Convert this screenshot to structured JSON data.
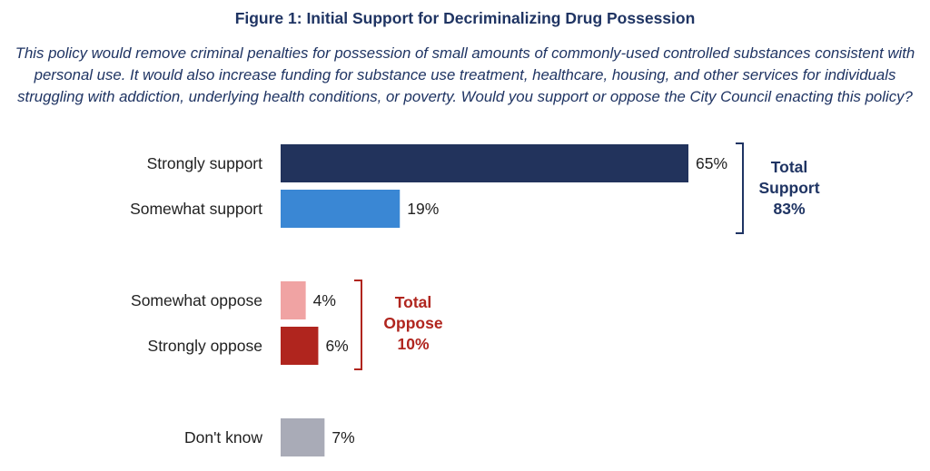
{
  "figure": {
    "title": "Figure 1: Initial Support for Decriminalizing Drug Possession",
    "question": "This policy would remove criminal penalties for possession of small amounts of commonly-used controlled substances consistent with personal use.  It would also increase funding for substance use treatment, healthcare, housing, and other services for individuals struggling with addiction, underlying health conditions, or poverty. Would you support or oppose the City Council enacting this policy?"
  },
  "groups": {
    "support": {
      "lines": [
        "Total",
        "Support",
        "83%"
      ],
      "color": "#1f3463"
    },
    "oppose": {
      "lines": [
        "Total",
        "Oppose",
        "10%"
      ],
      "color": "#b0251e"
    }
  },
  "chart_data": {
    "type": "bar",
    "orientation": "horizontal",
    "categories": [
      "Strongly support",
      "Somewhat support",
      "Somewhat oppose",
      "Strongly oppose",
      "Don't know"
    ],
    "values": [
      65,
      19,
      4,
      6,
      7
    ],
    "value_labels": [
      "65%",
      "19%",
      "4%",
      "6%",
      "7%"
    ],
    "colors": [
      "#22335c",
      "#3a87d4",
      "#f0a3a3",
      "#b0251e",
      "#a9abb7"
    ],
    "unit": "%",
    "xlim": [
      0,
      65
    ],
    "grid": false,
    "title": "Figure 1: Initial Support for Decriminalizing Drug Possession"
  }
}
